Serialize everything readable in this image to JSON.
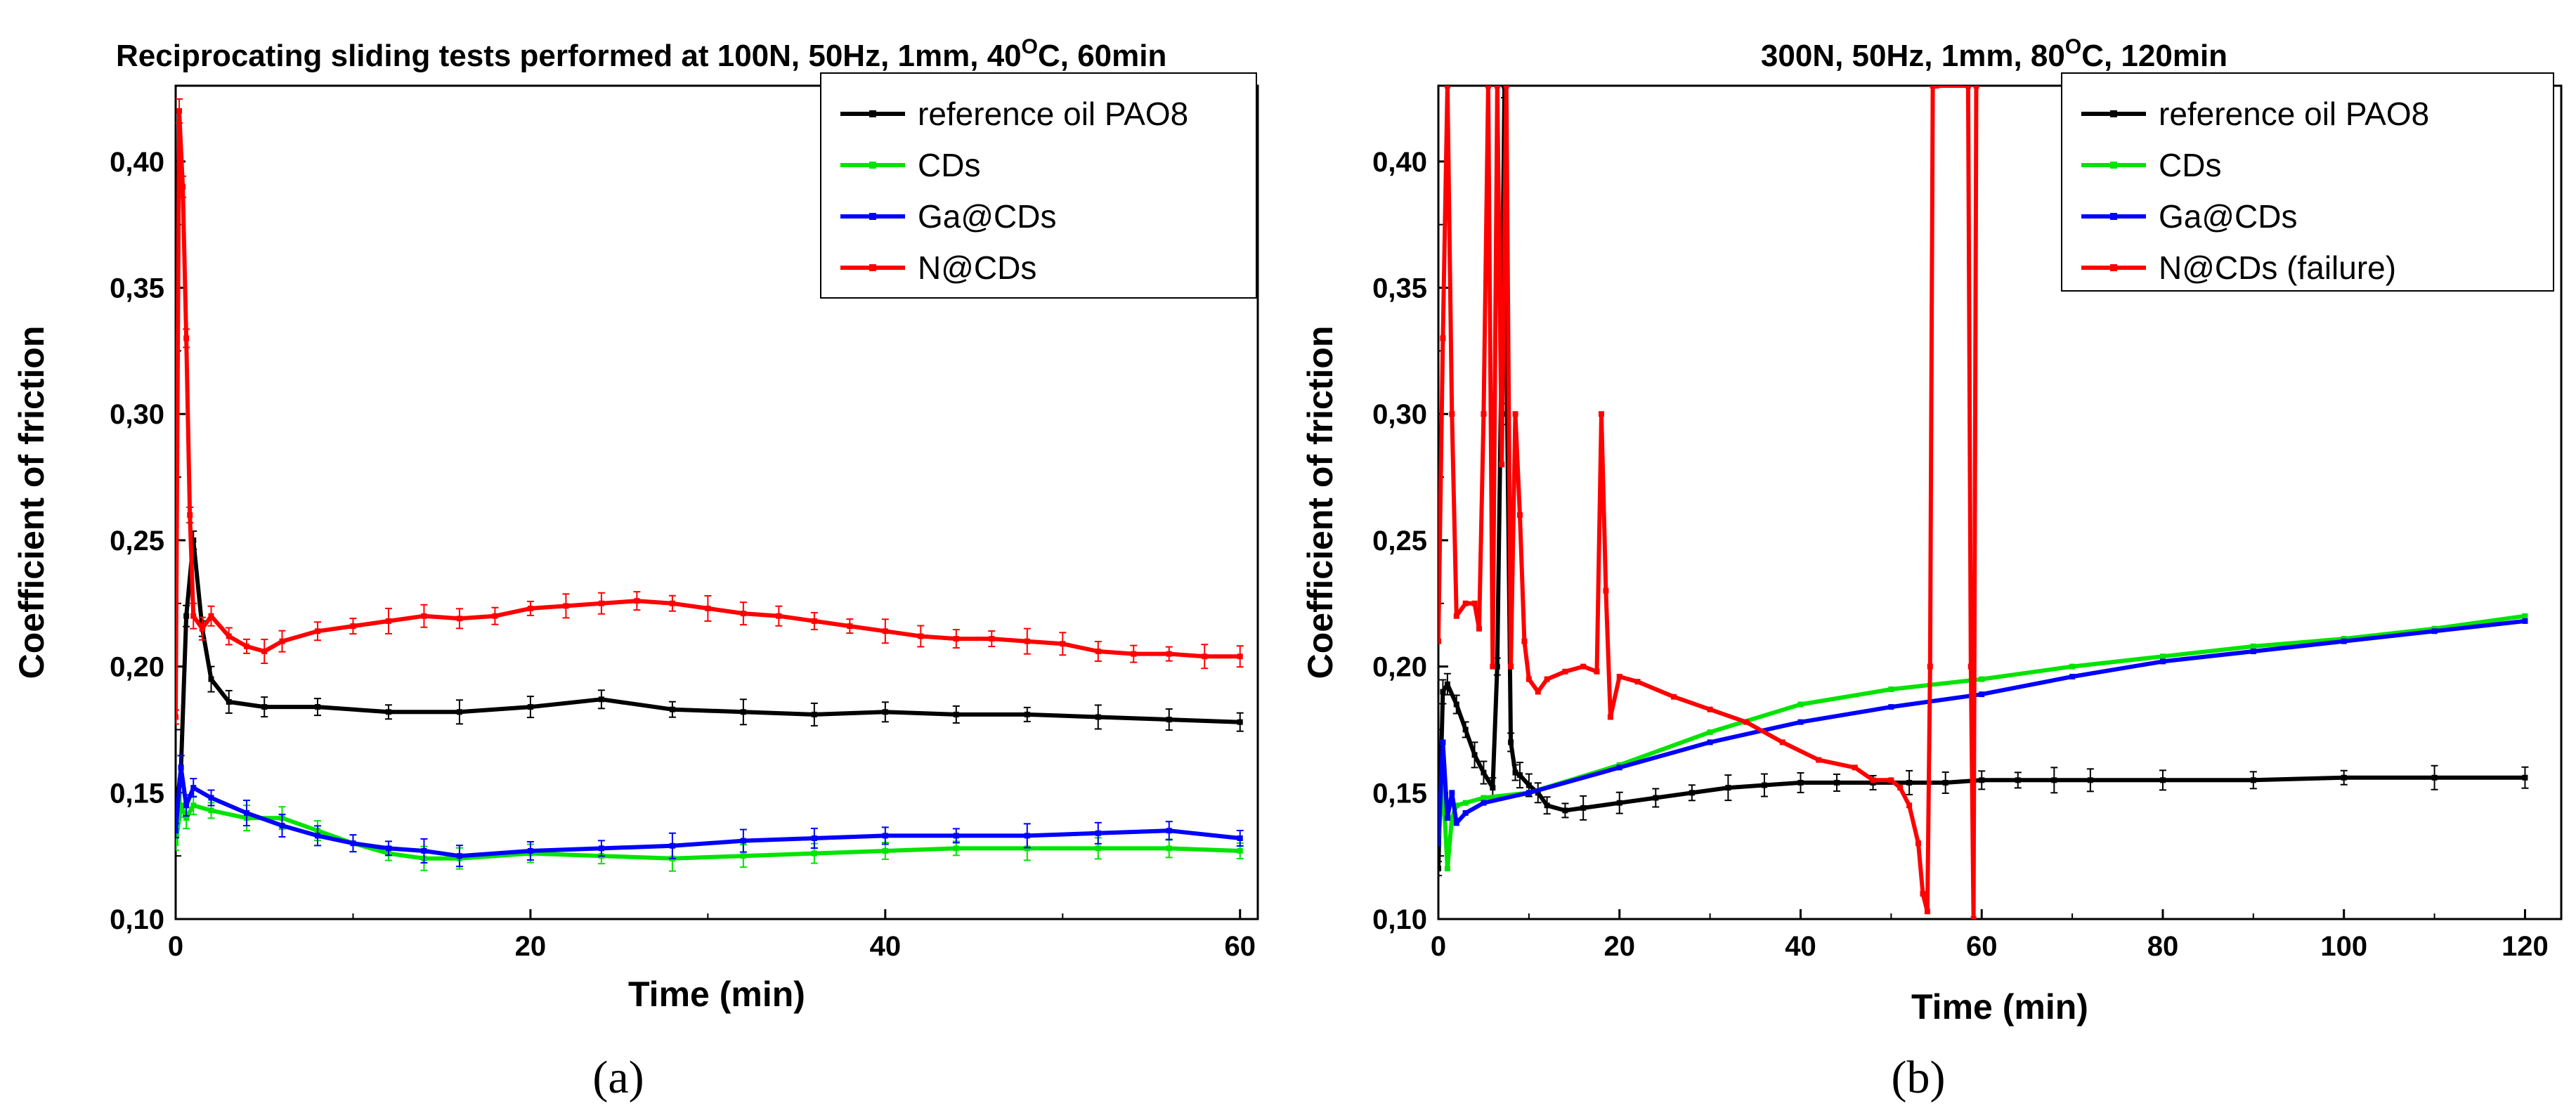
{
  "chart_data": [
    {
      "type": "line",
      "panel_label": "(a)",
      "title": "Reciprocating sliding tests performed at 100N, 50Hz, 1mm, 40",
      "title_sup": "O",
      "title_tail": "C, 60min",
      "xlabel": "Time (min)",
      "ylabel": "Coefficient of friction",
      "xlim": [
        0,
        61
      ],
      "ylim": [
        0.1,
        0.43
      ],
      "xticks": [
        0,
        20,
        40,
        60
      ],
      "xtick_labels": [
        "0",
        "20",
        "40",
        "60"
      ],
      "yticks": [
        0.1,
        0.15,
        0.2,
        0.25,
        0.3,
        0.35,
        0.4
      ],
      "ytick_labels": [
        "0,10",
        "0,15",
        "0,20",
        "0,25",
        "0,30",
        "0,35",
        "0,40"
      ],
      "legend_position": "top-right",
      "series": [
        {
          "name": "reference oil PAO8",
          "color": "#000000",
          "x": [
            0,
            0.3,
            0.6,
            1,
            1.5,
            2,
            3,
            5,
            8,
            12,
            16,
            20,
            24,
            28,
            32,
            36,
            40,
            44,
            48,
            52,
            56,
            60
          ],
          "y": [
            0.14,
            0.16,
            0.22,
            0.25,
            0.215,
            0.195,
            0.186,
            0.184,
            0.184,
            0.182,
            0.182,
            0.184,
            0.187,
            0.183,
            0.182,
            0.181,
            0.182,
            0.181,
            0.181,
            0.18,
            0.179,
            0.178
          ]
        },
        {
          "name": "CDs",
          "color": "#00e400",
          "x": [
            0,
            0.3,
            0.6,
            1,
            2,
            4,
            6,
            8,
            10,
            12,
            14,
            16,
            20,
            24,
            28,
            32,
            36,
            40,
            44,
            48,
            52,
            56,
            60
          ],
          "y": [
            0.13,
            0.145,
            0.14,
            0.145,
            0.143,
            0.14,
            0.14,
            0.135,
            0.13,
            0.126,
            0.124,
            0.124,
            0.126,
            0.125,
            0.124,
            0.125,
            0.126,
            0.127,
            0.128,
            0.128,
            0.128,
            0.128,
            0.127
          ]
        },
        {
          "name": "Ga@CDs",
          "color": "#0000ff",
          "x": [
            0,
            0.3,
            0.6,
            1,
            2,
            4,
            6,
            8,
            10,
            12,
            14,
            16,
            20,
            24,
            28,
            32,
            36,
            40,
            44,
            48,
            52,
            56,
            60
          ],
          "y": [
            0.135,
            0.16,
            0.145,
            0.152,
            0.148,
            0.142,
            0.137,
            0.133,
            0.13,
            0.128,
            0.127,
            0.125,
            0.127,
            0.128,
            0.129,
            0.131,
            0.132,
            0.133,
            0.133,
            0.133,
            0.134,
            0.135,
            0.132
          ]
        },
        {
          "name": "N@CDs",
          "color": "#ff0000",
          "x": [
            0,
            0.2,
            0.4,
            0.6,
            0.8,
            1,
            1.5,
            2,
            3,
            4,
            5,
            6,
            8,
            10,
            12,
            14,
            16,
            18,
            20,
            22,
            24,
            26,
            28,
            30,
            32,
            34,
            36,
            38,
            40,
            42,
            44,
            46,
            48,
            50,
            52,
            54,
            56,
            58,
            60
          ],
          "y": [
            0.18,
            0.42,
            0.39,
            0.33,
            0.26,
            0.22,
            0.215,
            0.22,
            0.212,
            0.208,
            0.206,
            0.21,
            0.214,
            0.216,
            0.218,
            0.22,
            0.219,
            0.22,
            0.223,
            0.224,
            0.225,
            0.226,
            0.225,
            0.223,
            0.221,
            0.22,
            0.218,
            0.216,
            0.214,
            0.212,
            0.211,
            0.211,
            0.21,
            0.209,
            0.206,
            0.205,
            0.205,
            0.204,
            0.204
          ]
        }
      ]
    },
    {
      "type": "line",
      "panel_label": "(b)",
      "title": "300N, 50Hz, 1mm, 80",
      "title_sup": "O",
      "title_tail": "C, 120min",
      "xlabel": "Time (min)",
      "ylabel": "Coefficient of friction",
      "xlim": [
        0,
        124
      ],
      "ylim": [
        0.1,
        0.43
      ],
      "xticks": [
        0,
        20,
        40,
        60,
        80,
        100,
        120
      ],
      "xtick_labels": [
        "0",
        "20",
        "40",
        "60",
        "80",
        "100",
        "120"
      ],
      "yticks": [
        0.1,
        0.15,
        0.2,
        0.25,
        0.3,
        0.35,
        0.4
      ],
      "ytick_labels": [
        "0,10",
        "0,15",
        "0,20",
        "0,25",
        "0,30",
        "0,35",
        "0,40"
      ],
      "legend_position": "top-right",
      "series": [
        {
          "name": "reference oil PAO8",
          "color": "#000000",
          "x": [
            0,
            0.5,
            1,
            2,
            3,
            4,
            5,
            6,
            6.5,
            7,
            7.3,
            7.6,
            8,
            8.5,
            9,
            10,
            11,
            12,
            14,
            16,
            20,
            24,
            28,
            32,
            36,
            40,
            44,
            48,
            52,
            56,
            60,
            64,
            68,
            72,
            80,
            90,
            100,
            110,
            120
          ],
          "y": [
            0.12,
            0.19,
            0.193,
            0.185,
            0.175,
            0.165,
            0.158,
            0.152,
            0.2,
            0.33,
            0.43,
            0.3,
            0.17,
            0.158,
            0.157,
            0.153,
            0.15,
            0.145,
            0.143,
            0.144,
            0.146,
            0.148,
            0.15,
            0.152,
            0.153,
            0.154,
            0.154,
            0.154,
            0.154,
            0.154,
            0.155,
            0.155,
            0.155,
            0.155,
            0.155,
            0.155,
            0.156,
            0.156,
            0.156
          ]
        },
        {
          "name": "CDs",
          "color": "#00e400",
          "x": [
            0,
            0.5,
            1,
            1.5,
            2,
            3,
            5,
            10,
            20,
            30,
            40,
            50,
            60,
            70,
            80,
            90,
            100,
            110,
            120
          ],
          "y": [
            0.13,
            0.155,
            0.12,
            0.14,
            0.145,
            0.146,
            0.148,
            0.15,
            0.161,
            0.174,
            0.185,
            0.191,
            0.195,
            0.2,
            0.204,
            0.208,
            0.211,
            0.215,
            0.22
          ]
        },
        {
          "name": "Ga@CDs",
          "color": "#0000ff",
          "x": [
            0,
            0.5,
            1,
            1.5,
            2,
            3,
            5,
            10,
            20,
            30,
            40,
            50,
            60,
            70,
            80,
            90,
            100,
            110,
            120
          ],
          "y": [
            0.13,
            0.17,
            0.14,
            0.15,
            0.138,
            0.142,
            0.146,
            0.15,
            0.16,
            0.17,
            0.178,
            0.184,
            0.189,
            0.196,
            0.202,
            0.206,
            0.21,
            0.214,
            0.218
          ]
        },
        {
          "name": "N@CDs (failure)",
          "color": "#ff0000",
          "x": [
            0,
            0.5,
            1,
            1.5,
            2,
            3,
            4,
            4.5,
            5,
            5.5,
            6,
            6.5,
            7,
            7.5,
            8,
            8.5,
            9,
            9.5,
            10,
            11,
            12,
            14,
            16,
            17.5,
            18,
            18.5,
            19,
            20,
            22,
            26,
            30,
            34,
            38,
            42,
            46,
            48,
            50,
            51,
            52,
            53,
            53.5,
            54,
            54.3,
            54.6,
            55,
            58.5,
            58.8,
            59.1,
            59.4
          ],
          "y": [
            0.21,
            0.33,
            0.43,
            0.3,
            0.22,
            0.225,
            0.225,
            0.215,
            0.3,
            0.43,
            0.2,
            0.43,
            0.28,
            0.43,
            0.2,
            0.3,
            0.26,
            0.21,
            0.195,
            0.19,
            0.195,
            0.198,
            0.2,
            0.198,
            0.3,
            0.23,
            0.18,
            0.196,
            0.194,
            0.188,
            0.183,
            0.178,
            0.17,
            0.163,
            0.16,
            0.155,
            0.155,
            0.152,
            0.145,
            0.13,
            0.11,
            0.103,
            0.2,
            0.43,
            0.43,
            0.43,
            0.2,
            0.1,
            0.43
          ]
        }
      ]
    }
  ]
}
